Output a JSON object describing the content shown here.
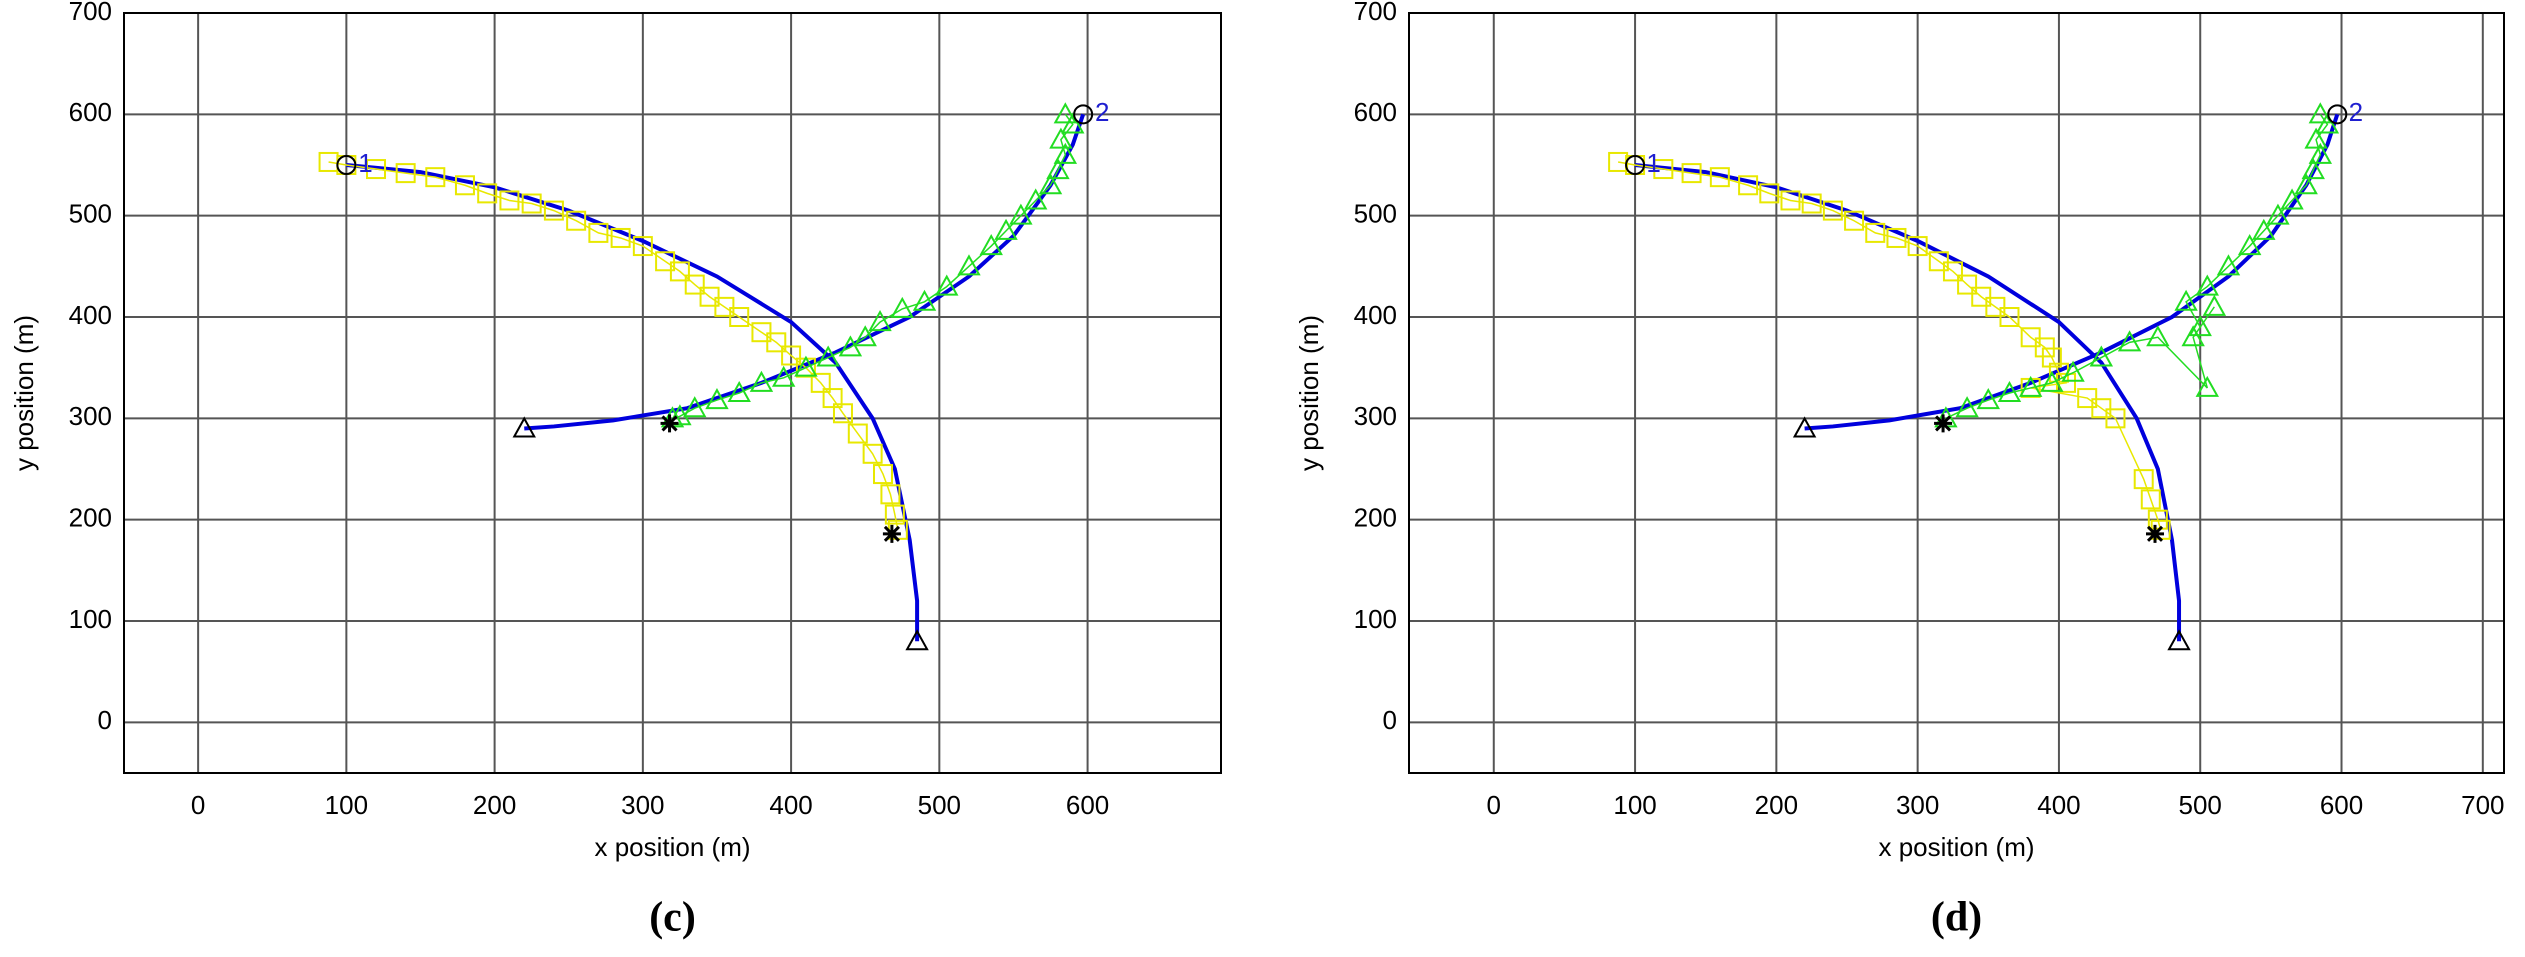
{
  "chart_data": [
    {
      "type": "line",
      "caption": "(c)",
      "xlabel": "x position (m)",
      "ylabel": "y position (m)",
      "xlim": [
        -50,
        690
      ],
      "ylim": [
        -50,
        700
      ],
      "xticks": [
        0,
        100,
        200,
        300,
        400,
        500,
        600
      ],
      "yticks": [
        0,
        100,
        200,
        300,
        400,
        500,
        600,
        700
      ],
      "grid": true,
      "series": [
        {
          "marker": "none",
          "color": "#0000dd",
          "x": [
            100,
            150,
            200,
            250,
            300,
            350,
            400,
            430,
            455,
            470,
            480,
            485,
            485
          ],
          "values": [
            550,
            543,
            528,
            505,
            475,
            440,
            395,
            355,
            300,
            250,
            180,
            120,
            80
          ]
        },
        {
          "marker": "none",
          "color": "#0000dd",
          "x": [
            597,
            590,
            575,
            550,
            520,
            480,
            430,
            380,
            330,
            280,
            240,
            220
          ],
          "values": [
            600,
            570,
            530,
            480,
            440,
            400,
            365,
            335,
            310,
            298,
            292,
            290
          ]
        },
        {
          "marker": "square",
          "color": "#e8e800",
          "x": [
            88,
            100,
            120,
            140,
            160,
            180,
            195,
            210,
            225,
            240,
            255,
            270,
            285,
            300,
            315,
            325,
            335,
            345,
            355,
            365,
            380,
            390,
            400,
            410,
            420,
            428,
            435,
            445,
            455,
            462,
            467,
            470,
            472
          ],
          "values": [
            553,
            550,
            546,
            542,
            538,
            530,
            522,
            515,
            512,
            505,
            495,
            483,
            478,
            470,
            455,
            445,
            432,
            420,
            410,
            400,
            385,
            375,
            362,
            350,
            335,
            320,
            305,
            285,
            265,
            245,
            225,
            205,
            190
          ]
        },
        {
          "marker": "triangle",
          "color": "#22dd22",
          "x": [
            585,
            590,
            582,
            585,
            580,
            575,
            565,
            555,
            545,
            535,
            520,
            505,
            490,
            475,
            460,
            450,
            440,
            425,
            410,
            395,
            380,
            365,
            350,
            335,
            325,
            320
          ],
          "values": [
            600,
            590,
            575,
            560,
            545,
            530,
            515,
            500,
            485,
            470,
            450,
            430,
            415,
            408,
            395,
            380,
            370,
            360,
            350,
            340,
            335,
            325,
            318,
            310,
            302,
            300
          ]
        },
        {
          "marker": "circle",
          "color": "#000000",
          "x": [
            100,
            597
          ],
          "values": [
            550,
            600
          ]
        },
        {
          "marker": "triangle",
          "color": "#000000",
          "x": [
            485,
            220
          ],
          "values": [
            80,
            290
          ]
        },
        {
          "marker": "asterisk",
          "color": "#000000",
          "x": [
            468,
            318
          ],
          "values": [
            186,
            295
          ]
        }
      ],
      "annotations": [
        {
          "text": "1",
          "x": 108,
          "y": 550,
          "color": "#1f1fd0"
        },
        {
          "text": "2",
          "x": 605,
          "y": 600,
          "color": "#1f1fd0"
        }
      ]
    },
    {
      "type": "line",
      "caption": "(d)",
      "xlabel": "x position (m)",
      "ylabel": "y position (m)",
      "xlim": [
        -60,
        715
      ],
      "ylim": [
        -50,
        700
      ],
      "xticks": [
        0,
        100,
        200,
        300,
        400,
        500,
        600,
        700
      ],
      "yticks": [
        0,
        100,
        200,
        300,
        400,
        500,
        600,
        700
      ],
      "grid": true,
      "series": [
        {
          "marker": "none",
          "color": "#0000dd",
          "x": [
            100,
            150,
            200,
            250,
            300,
            350,
            400,
            430,
            455,
            470,
            480,
            485,
            485
          ],
          "values": [
            550,
            543,
            528,
            505,
            475,
            440,
            395,
            355,
            300,
            250,
            180,
            120,
            80
          ]
        },
        {
          "marker": "none",
          "color": "#0000dd",
          "x": [
            597,
            590,
            575,
            550,
            520,
            480,
            430,
            380,
            330,
            280,
            240,
            220
          ],
          "values": [
            600,
            570,
            530,
            480,
            440,
            400,
            365,
            335,
            310,
            298,
            292,
            290
          ]
        },
        {
          "marker": "square",
          "color": "#e8e800",
          "x": [
            88,
            100,
            120,
            140,
            160,
            180,
            195,
            210,
            225,
            240,
            255,
            270,
            285,
            300,
            315,
            325,
            335,
            345,
            355,
            365,
            380,
            390,
            395,
            400,
            405,
            380,
            420,
            430,
            440,
            460,
            465,
            470,
            472
          ],
          "values": [
            553,
            550,
            546,
            542,
            538,
            530,
            522,
            515,
            512,
            505,
            495,
            483,
            478,
            470,
            455,
            445,
            432,
            420,
            410,
            400,
            380,
            370,
            360,
            345,
            335,
            330,
            320,
            310,
            300,
            240,
            220,
            200,
            190
          ]
        },
        {
          "marker": "triangle",
          "color": "#22dd22",
          "x": [
            585,
            590,
            582,
            585,
            580,
            575,
            565,
            555,
            545,
            535,
            520,
            505,
            490,
            500,
            510,
            495,
            505,
            470,
            450,
            430,
            410,
            395,
            380,
            365,
            350,
            335,
            320
          ],
          "values": [
            600,
            590,
            575,
            560,
            545,
            530,
            515,
            500,
            485,
            470,
            450,
            430,
            415,
            390,
            410,
            380,
            330,
            380,
            375,
            360,
            345,
            335,
            330,
            325,
            318,
            310,
            300
          ]
        },
        {
          "marker": "circle",
          "color": "#000000",
          "x": [
            100,
            597
          ],
          "values": [
            550,
            600
          ]
        },
        {
          "marker": "triangle",
          "color": "#000000",
          "x": [
            485,
            220
          ],
          "values": [
            80,
            290
          ]
        },
        {
          "marker": "asterisk",
          "color": "#000000",
          "x": [
            468,
            318
          ],
          "values": [
            186,
            295
          ]
        }
      ],
      "annotations": [
        {
          "text": "1",
          "x": 108,
          "y": 550,
          "color": "#1f1fd0"
        },
        {
          "text": "2",
          "x": 605,
          "y": 600,
          "color": "#1f1fd0"
        }
      ]
    }
  ]
}
